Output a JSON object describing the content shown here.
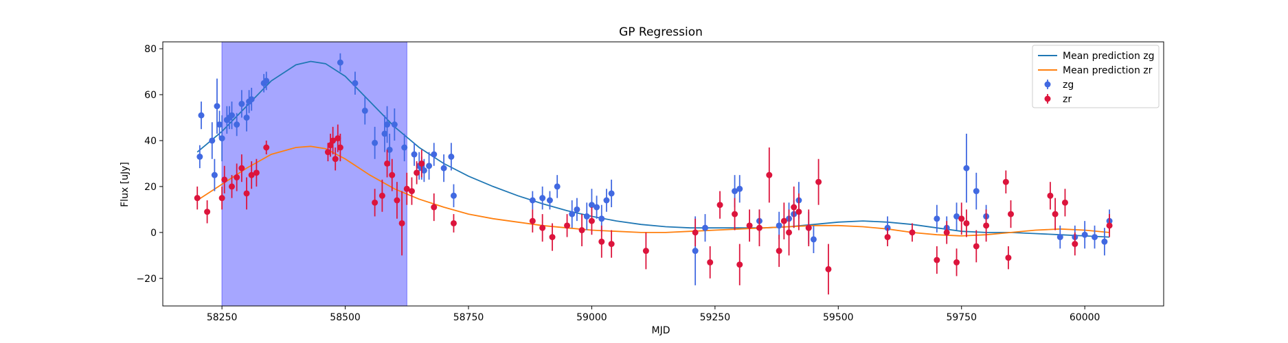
{
  "chart_data": {
    "type": "scatter",
    "title": "GP Regression",
    "xlabel": "MJD",
    "ylabel": "Flux [uJy]",
    "xlim": [
      58130,
      60160
    ],
    "ylim": [
      -32,
      83
    ],
    "xticks": [
      58250,
      58500,
      58750,
      59000,
      59250,
      59500,
      59750,
      60000
    ],
    "xtick_labels": [
      "58250",
      "58500",
      "58750",
      "59000",
      "59250",
      "59500",
      "59750",
      "60000"
    ],
    "yticks": [
      -20,
      0,
      20,
      40,
      60,
      80
    ],
    "ytick_labels": [
      "−20",
      "0",
      "20",
      "40",
      "60",
      "80"
    ],
    "legend_position": "top-right",
    "highlight_region": {
      "x0": 58250,
      "x1": 58625,
      "color": "#a6a6ff"
    },
    "series": [
      {
        "name": "Mean prediction zg",
        "kind": "line",
        "color": "#1f77b4",
        "x": [
          58200,
          58250,
          58300,
          58350,
          58400,
          58430,
          58460,
          58500,
          58550,
          58600,
          58650,
          58700,
          58750,
          58800,
          58850,
          58900,
          58950,
          59000,
          59050,
          59100,
          59150,
          59200,
          59250,
          59300,
          59350,
          59400,
          59450,
          59500,
          59550,
          59600,
          59650,
          59700,
          59750,
          59800,
          59850,
          59900,
          59950,
          60000,
          60050
        ],
        "y": [
          35,
          44,
          55,
          66,
          73,
          74.5,
          73.5,
          68,
          57,
          46,
          37,
          30,
          24.5,
          20,
          16,
          12.5,
          9.5,
          7,
          5,
          3.5,
          2.5,
          2,
          2,
          2,
          2,
          2.5,
          3.5,
          4.5,
          5,
          4.5,
          3.5,
          2,
          0.5,
          0,
          0,
          -0.5,
          -1,
          -1.5,
          -2
        ]
      },
      {
        "name": "Mean prediction zr",
        "kind": "line",
        "color": "#ff7f0e",
        "x": [
          58200,
          58250,
          58300,
          58350,
          58400,
          58430,
          58460,
          58500,
          58550,
          58600,
          58650,
          58700,
          58750,
          58800,
          58850,
          58900,
          58950,
          59000,
          59050,
          59100,
          59150,
          59200,
          59250,
          59300,
          59350,
          59400,
          59450,
          59500,
          59550,
          59600,
          59650,
          59700,
          59750,
          59800,
          59850,
          59900,
          59950,
          60000,
          60050
        ],
        "y": [
          14,
          21,
          28,
          34,
          37,
          37.5,
          36.5,
          32,
          25,
          19,
          14.5,
          11,
          8,
          6,
          4.5,
          3,
          2,
          1,
          0.5,
          0,
          0,
          0.5,
          1,
          1.5,
          2,
          2.5,
          3,
          3,
          2.5,
          1.5,
          0,
          -1,
          -1.5,
          -1,
          0,
          1,
          1.5,
          1,
          0
        ]
      },
      {
        "name": "zg",
        "kind": "errorbar",
        "color": "#4169e1",
        "x": [
          58205,
          58208,
          58230,
          58235,
          58240,
          58245,
          58250,
          58260,
          58265,
          58270,
          58280,
          58290,
          58300,
          58305,
          58310,
          58335,
          58340,
          58490,
          58520,
          58540,
          58560,
          58580,
          58585,
          58590,
          58600,
          58620,
          58640,
          58650,
          58655,
          58660,
          58670,
          58680,
          58700,
          58715,
          58720,
          58880,
          58900,
          58915,
          58930,
          58960,
          58970,
          58990,
          59000,
          59010,
          59020,
          59030,
          59040,
          59210,
          59230,
          59290,
          59300,
          59340,
          59380,
          59400,
          59410,
          59420,
          59440,
          59450,
          59600,
          59700,
          59720,
          59740,
          59760,
          59780,
          59800,
          59950,
          59980,
          60000,
          60020,
          60040,
          60050
        ],
        "y": [
          33,
          51,
          40,
          25,
          55,
          47,
          41,
          49,
          50,
          51,
          47,
          56,
          50,
          57,
          58,
          65,
          66,
          74,
          65,
          53,
          39,
          43,
          47,
          36,
          47,
          37,
          34,
          29,
          28,
          27,
          29,
          34,
          28,
          33,
          16,
          14,
          15,
          14,
          20,
          8,
          10,
          7,
          12,
          11,
          6,
          14,
          17,
          -8,
          2,
          18,
          19,
          5,
          3,
          6,
          8,
          14,
          2,
          -3,
          2,
          6,
          2,
          7,
          28,
          18,
          7,
          -2,
          -2,
          -1,
          -2,
          -4,
          5
        ],
        "err": [
          5,
          6,
          8,
          7,
          12,
          6,
          10,
          6,
          5,
          6,
          5,
          6,
          6,
          5,
          5,
          4,
          4,
          4,
          5,
          6,
          7,
          8,
          8,
          7,
          7,
          6,
          5,
          6,
          5,
          5,
          6,
          5,
          6,
          6,
          5,
          4,
          5,
          4,
          5,
          6,
          5,
          6,
          7,
          5,
          6,
          5,
          6,
          15,
          6,
          7,
          6,
          5,
          6,
          7,
          6,
          8,
          7,
          6,
          5,
          6,
          5,
          6,
          15,
          8,
          5,
          5,
          5,
          6,
          5,
          6,
          5
        ]
      },
      {
        "name": "zr",
        "kind": "errorbar",
        "color": "#dc143c",
        "x": [
          58200,
          58220,
          58250,
          58255,
          58270,
          58280,
          58290,
          58300,
          58310,
          58320,
          58340,
          58465,
          58470,
          58475,
          58480,
          58485,
          58490,
          58560,
          58575,
          58585,
          58595,
          58605,
          58615,
          58625,
          58635,
          58645,
          58655,
          58680,
          58720,
          58880,
          58900,
          58920,
          58950,
          58980,
          59000,
          59020,
          59040,
          59110,
          59210,
          59240,
          59260,
          59290,
          59300,
          59320,
          59340,
          59360,
          59380,
          59390,
          59400,
          59410,
          59420,
          59440,
          59460,
          59480,
          59600,
          59650,
          59700,
          59720,
          59740,
          59750,
          59760,
          59780,
          59800,
          59840,
          59845,
          59850,
          59930,
          59940,
          59960,
          59980,
          60050
        ],
        "y": [
          15,
          9,
          15,
          23,
          20,
          24,
          28,
          17,
          25,
          26,
          37,
          35,
          38,
          40,
          32,
          41,
          37,
          13,
          16,
          30,
          25,
          14,
          4,
          19,
          18,
          26,
          30,
          11,
          4,
          5,
          2,
          -2,
          3,
          1,
          5,
          -4,
          -5,
          -8,
          0,
          -13,
          12,
          8,
          -14,
          3,
          2,
          25,
          -8,
          5,
          0,
          11,
          9,
          2,
          22,
          -16,
          -2,
          0,
          -12,
          0,
          -13,
          6,
          4,
          -6,
          3,
          22,
          -11,
          8,
          16,
          8,
          13,
          -5,
          3
        ],
        "err": [
          5,
          5,
          5,
          6,
          5,
          6,
          6,
          7,
          6,
          6,
          3,
          4,
          5,
          6,
          5,
          6,
          6,
          6,
          7,
          6,
          7,
          8,
          14,
          7,
          6,
          5,
          6,
          6,
          4,
          5,
          6,
          6,
          5,
          7,
          6,
          7,
          6,
          8,
          6,
          7,
          6,
          7,
          9,
          7,
          8,
          12,
          7,
          8,
          10,
          9,
          8,
          8,
          10,
          11,
          4,
          4,
          6,
          5,
          6,
          7,
          6,
          7,
          7,
          5,
          5,
          6,
          6,
          7,
          6,
          5,
          5
        ]
      }
    ]
  }
}
